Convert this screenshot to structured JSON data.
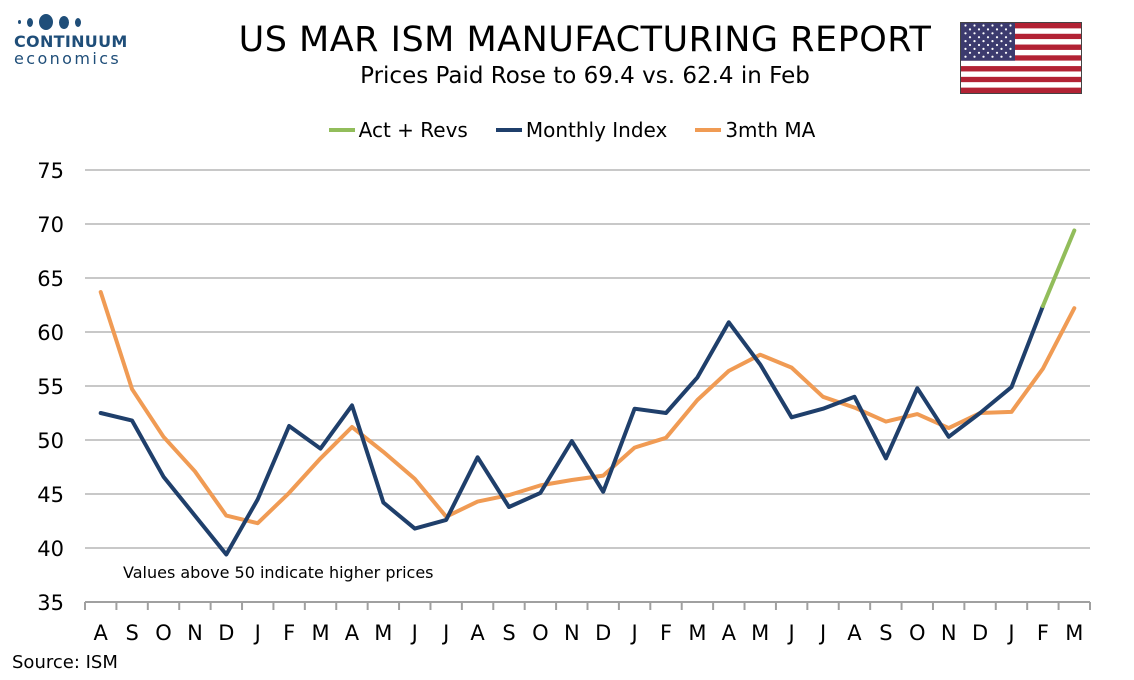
{
  "header": {
    "title": "US MAR ISM MANUFACTURING REPORT",
    "subtitle": "Prices Paid Rose to 69.4 vs. 62.4 in Feb"
  },
  "logo": {
    "name": "CONTINUUM",
    "sub": "economics"
  },
  "flag": {
    "icon": "us-flag-icon",
    "stripe_red": "#b22234",
    "canton_blue": "#3c3b6e"
  },
  "source": "Source: ISM",
  "chart_data": {
    "type": "line",
    "categories": [
      "A",
      "S",
      "O",
      "N",
      "D",
      "J",
      "F",
      "M",
      "A",
      "M",
      "J",
      "J",
      "A",
      "S",
      "O",
      "N",
      "D",
      "J",
      "F",
      "M",
      "A",
      "M",
      "J",
      "J",
      "A",
      "S",
      "O",
      "N",
      "D",
      "J",
      "F",
      "M"
    ],
    "ylim": [
      35,
      75
    ],
    "yticks": [
      35,
      40,
      45,
      50,
      55,
      60,
      65,
      70,
      75
    ],
    "grid": true,
    "legend_position": "top-center",
    "annotation": "Values above 50 indicate higher prices",
    "series": [
      {
        "name": "Act + Revs",
        "color": "#92bd5b",
        "values": [
          null,
          null,
          null,
          null,
          null,
          null,
          null,
          null,
          null,
          null,
          null,
          null,
          null,
          null,
          null,
          null,
          null,
          null,
          null,
          null,
          null,
          null,
          null,
          null,
          null,
          null,
          null,
          null,
          null,
          null,
          62.4,
          69.4
        ]
      },
      {
        "name": "Monthly Index",
        "color": "#1f3f6b",
        "values": [
          52.5,
          51.8,
          46.6,
          43.0,
          39.4,
          44.5,
          51.3,
          49.2,
          53.2,
          44.2,
          41.8,
          42.6,
          48.4,
          43.8,
          45.1,
          49.9,
          45.2,
          52.9,
          52.5,
          55.8,
          60.9,
          57.0,
          52.1,
          52.9,
          54.0,
          48.3,
          54.8,
          50.3,
          52.5,
          54.9,
          62.4,
          null
        ]
      },
      {
        "name": "3mth MA",
        "color": "#f09b54",
        "values": [
          63.7,
          54.7,
          50.3,
          47.1,
          43.0,
          42.3,
          45.1,
          48.3,
          51.2,
          48.9,
          46.4,
          42.9,
          44.3,
          44.9,
          45.8,
          46.3,
          46.7,
          49.3,
          50.2,
          53.7,
          56.4,
          57.9,
          56.7,
          54.0,
          53.0,
          51.7,
          52.4,
          51.1,
          52.5,
          52.6,
          56.6,
          62.2
        ]
      }
    ]
  }
}
